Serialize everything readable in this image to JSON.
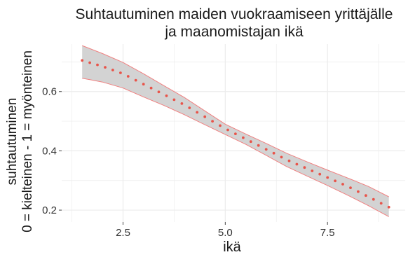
{
  "chart_data": {
    "type": "line",
    "title_lines": [
      "Suhtautuminen maiden vuokraamiseen yrittäjälle",
      "ja maanomistajan ikä"
    ],
    "xlabel": "ikä",
    "ylabel_lines": [
      "suhtautuminen",
      "0 = kielteinen - 1 = myönteinen"
    ],
    "xlim": [
      1.0,
      9.4
    ],
    "ylim": [
      0.16,
      0.76
    ],
    "x_ticks": [
      {
        "value": 2.5,
        "label": "2.5"
      },
      {
        "value": 5.0,
        "label": "5.0"
      },
      {
        "value": 7.5,
        "label": "7.5"
      }
    ],
    "y_ticks": [
      {
        "value": 0.2,
        "label": "0.2"
      },
      {
        "value": 0.4,
        "label": "0.4"
      },
      {
        "value": 0.6,
        "label": "0.6"
      }
    ],
    "grid": true,
    "x_range": [
      1.5,
      9.0
    ],
    "n_points": 41,
    "series": [
      {
        "role": "fit",
        "points": [
          [
            1.5,
            0.705
          ],
          [
            2.0,
            0.685
          ],
          [
            2.5,
            0.66
          ],
          [
            3.0,
            0.625
          ],
          [
            3.5,
            0.59
          ],
          [
            4.0,
            0.555
          ],
          [
            4.5,
            0.515
          ],
          [
            5.0,
            0.475
          ],
          [
            5.5,
            0.44
          ],
          [
            6.0,
            0.405
          ],
          [
            6.5,
            0.37
          ],
          [
            7.0,
            0.34
          ],
          [
            7.5,
            0.31
          ],
          [
            8.0,
            0.28
          ],
          [
            8.5,
            0.245
          ],
          [
            9.0,
            0.21
          ]
        ]
      },
      {
        "role": "ci_upper",
        "points": [
          [
            1.5,
            0.755
          ],
          [
            2.0,
            0.728
          ],
          [
            2.5,
            0.698
          ],
          [
            3.0,
            0.66
          ],
          [
            3.5,
            0.62
          ],
          [
            4.0,
            0.58
          ],
          [
            4.5,
            0.535
          ],
          [
            5.0,
            0.49
          ],
          [
            5.5,
            0.457
          ],
          [
            6.0,
            0.425
          ],
          [
            6.5,
            0.392
          ],
          [
            7.0,
            0.363
          ],
          [
            7.5,
            0.335
          ],
          [
            8.0,
            0.308
          ],
          [
            8.5,
            0.28
          ],
          [
            9.0,
            0.245
          ]
        ]
      },
      {
        "role": "ci_lower",
        "points": [
          [
            1.5,
            0.645
          ],
          [
            2.0,
            0.632
          ],
          [
            2.5,
            0.612
          ],
          [
            3.0,
            0.582
          ],
          [
            3.5,
            0.553
          ],
          [
            4.0,
            0.522
          ],
          [
            4.5,
            0.488
          ],
          [
            5.0,
            0.455
          ],
          [
            5.5,
            0.422
          ],
          [
            6.0,
            0.385
          ],
          [
            6.5,
            0.347
          ],
          [
            7.0,
            0.315
          ],
          [
            7.5,
            0.283
          ],
          [
            8.0,
            0.25
          ],
          [
            8.5,
            0.215
          ],
          [
            9.0,
            0.178
          ]
        ]
      }
    ],
    "colors": {
      "points": "#e8544a",
      "band_fill": "#d3d3d3",
      "band_stroke": "#f08080",
      "grid": "#ececec",
      "text": "#1a1a1a"
    }
  }
}
